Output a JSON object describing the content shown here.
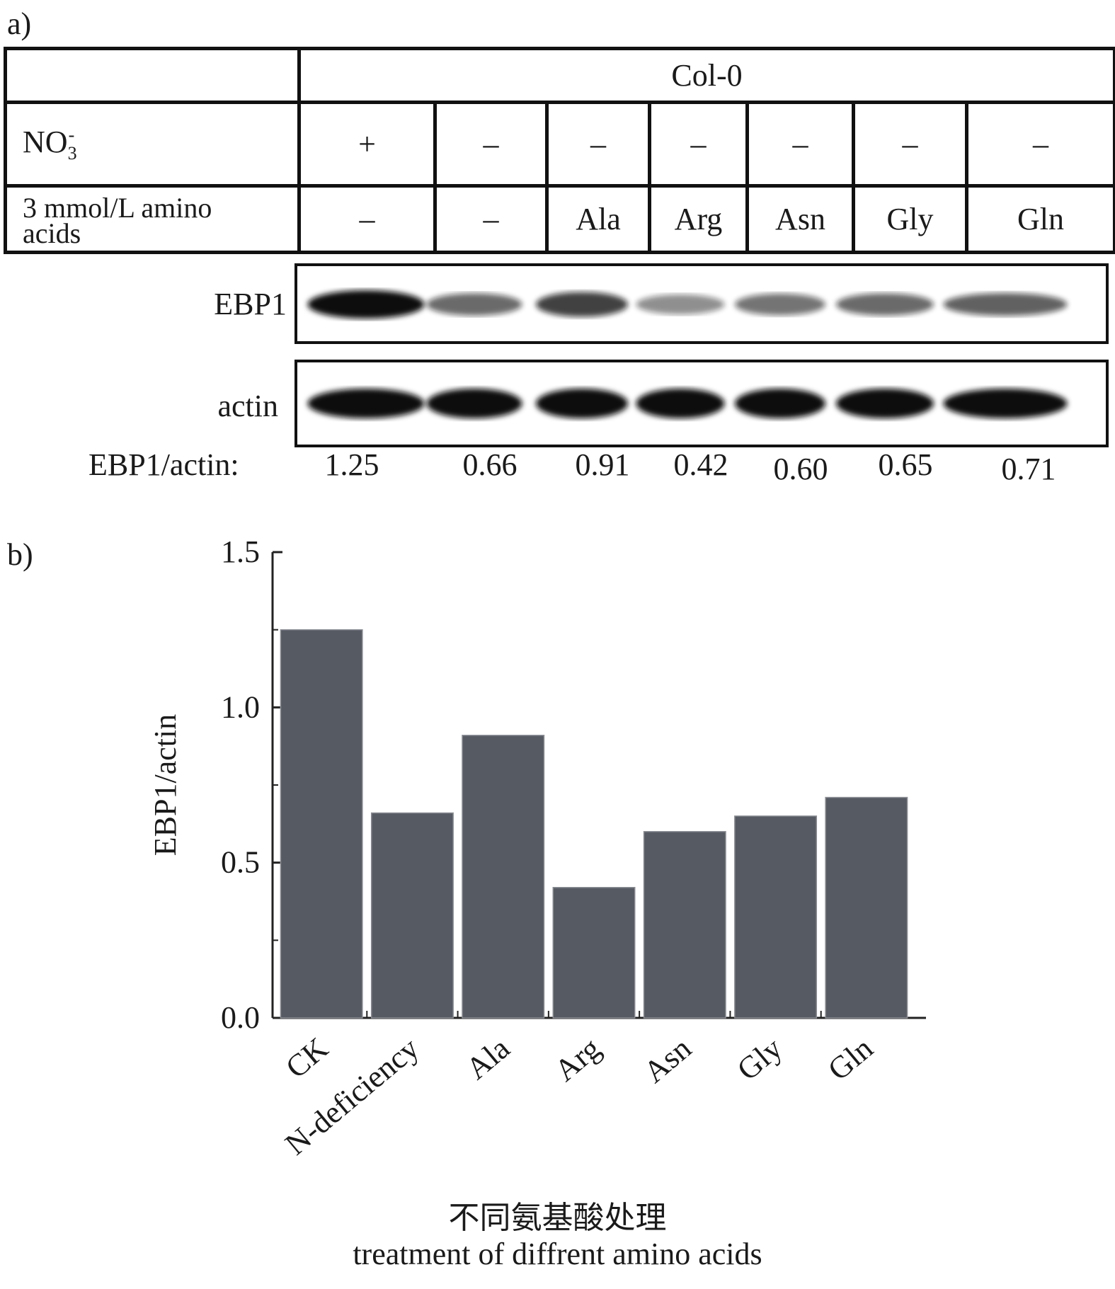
{
  "panel_a": {
    "label": "a)",
    "header": "Col-0",
    "no3_label": "NO",
    "no3_sub": "3",
    "no3_sup": "-",
    "amino_label_line1": "3 mmol/L amino",
    "amino_label_line2": "acids",
    "lanes": [
      {
        "no3": "+",
        "amino": "–",
        "ratio": "1.25"
      },
      {
        "no3": "–",
        "amino": "–",
        "ratio": "0.66"
      },
      {
        "no3": "–",
        "amino": "Ala",
        "ratio": "0.91"
      },
      {
        "no3": "–",
        "amino": "Arg",
        "ratio": "0.42"
      },
      {
        "no3": "–",
        "amino": "Asn",
        "ratio": "0.60"
      },
      {
        "no3": "–",
        "amino": "Gly",
        "ratio": "0.65"
      },
      {
        "no3": "–",
        "amino": "Gln",
        "ratio": "0.71"
      }
    ],
    "blot_labels": {
      "ebp1": "EBP1",
      "actin": "actin"
    },
    "ratio_label": "EBP1/actin:",
    "ebp1_band_intensity": [
      1.25,
      0.66,
      0.91,
      0.42,
      0.6,
      0.65,
      0.71
    ],
    "actin_band_intensity": [
      1.0,
      1.0,
      1.0,
      1.0,
      1.0,
      1.0,
      1.0
    ]
  },
  "panel_b": {
    "label": "b)"
  },
  "chart_data": {
    "type": "bar",
    "categories": [
      "CK",
      "N-deficiency",
      "Ala",
      "Arg",
      "Asn",
      "Gly",
      "Gln"
    ],
    "values": [
      1.25,
      0.66,
      0.91,
      0.42,
      0.6,
      0.65,
      0.71
    ],
    "ylabel": "EBP1/actin",
    "xlabel_cn": "不同氨基酸处理",
    "xlabel_en": "treatment of diffrent amino acids",
    "ylim": [
      0,
      1.5
    ],
    "yticks": [
      "0.0",
      "0.5",
      "1.0",
      "1.5"
    ],
    "bar_color": "#565a63",
    "grid": false
  }
}
